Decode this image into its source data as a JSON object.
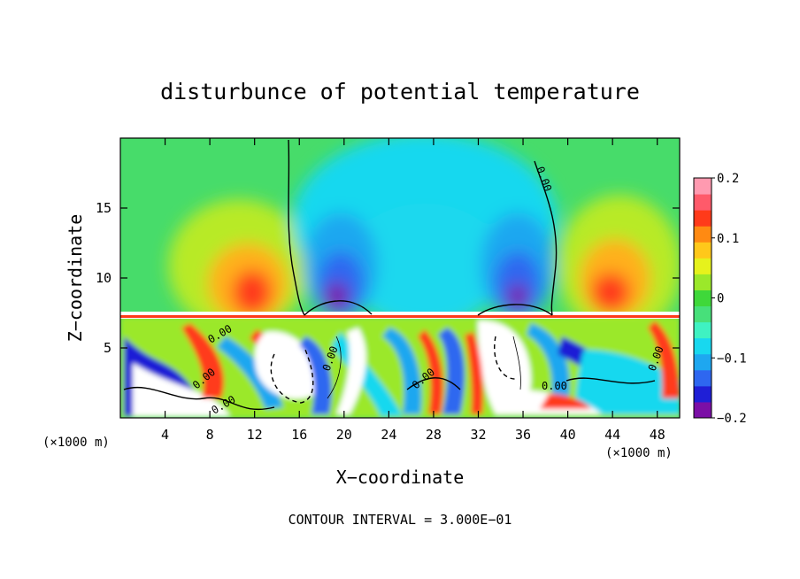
{
  "chart_data": {
    "type": "heatmap",
    "title": "disturbunce of potential temperature",
    "xlabel": "X−coordinate",
    "ylabel": "Z−coordinate",
    "x_unit_left": "(×1000 m)",
    "x_unit_right": "(×1000 m)",
    "xlim": [
      0,
      50
    ],
    "ylim": [
      0,
      20
    ],
    "xticks": [
      4,
      8,
      12,
      16,
      20,
      24,
      28,
      32,
      36,
      40,
      44,
      48
    ],
    "xtick_labels": [
      "4",
      "8",
      "12",
      "16",
      "20",
      "24",
      "28",
      "32",
      "36",
      "40",
      "44",
      "48"
    ],
    "yticks": [
      5,
      10,
      15
    ],
    "ytick_labels": [
      "5",
      "10",
      "15"
    ],
    "colorbar": {
      "vmin": -0.2,
      "vmax": 0.2,
      "ticks": [
        0.2,
        0.1,
        0,
        -0.1,
        -0.2
      ],
      "tick_labels": [
        "0.2",
        "0.1",
        "0",
        "−0.1",
        "−0.2"
      ],
      "colors": [
        "#7b0fa6",
        "#1f1fd6",
        "#2e67f0",
        "#1ea7f0",
        "#18d8ef",
        "#3ff2c2",
        "#47e07a",
        "#3fd83a",
        "#9be82a",
        "#e6f21c",
        "#ffc81a",
        "#ff8a12",
        "#ff3a1a",
        "#ff5a6a",
        "#ff9ab0"
      ]
    },
    "contour_labels": [
      "0.00",
      "0.00",
      "0.00",
      "0.00",
      "0.00",
      "0.00",
      "0.00",
      "0.00"
    ],
    "footer": "CONTOUR INTERVAL = 3.000E−01"
  }
}
